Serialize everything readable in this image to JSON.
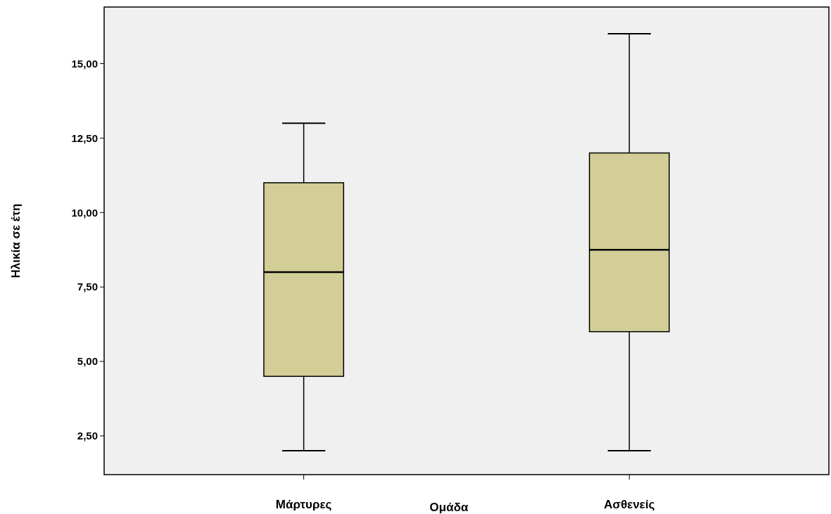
{
  "chart_data": {
    "type": "box",
    "xlabel": "Ομάδα",
    "ylabel": "Ηλικία σε έτη",
    "categories": [
      "Μάρτυρες",
      "Ασθενείς"
    ],
    "color": "#d3ce97",
    "boxes": [
      {
        "low": 2,
        "q1": 4.5,
        "median": 8,
        "q3": 11,
        "high": 13
      },
      {
        "low": 2,
        "q1": 6,
        "median": 8.75,
        "q3": 12,
        "high": 16
      }
    ],
    "ylim": [
      1.2,
      16.9
    ],
    "yticks": [
      {
        "value": 2.5,
        "label": "2,50"
      },
      {
        "value": 5,
        "label": "5,00"
      },
      {
        "value": 7.5,
        "label": "7,50"
      },
      {
        "value": 10,
        "label": "10,00"
      },
      {
        "value": 12.5,
        "label": "12,50"
      },
      {
        "value": 15,
        "label": "15,00"
      }
    ],
    "grid": false
  }
}
